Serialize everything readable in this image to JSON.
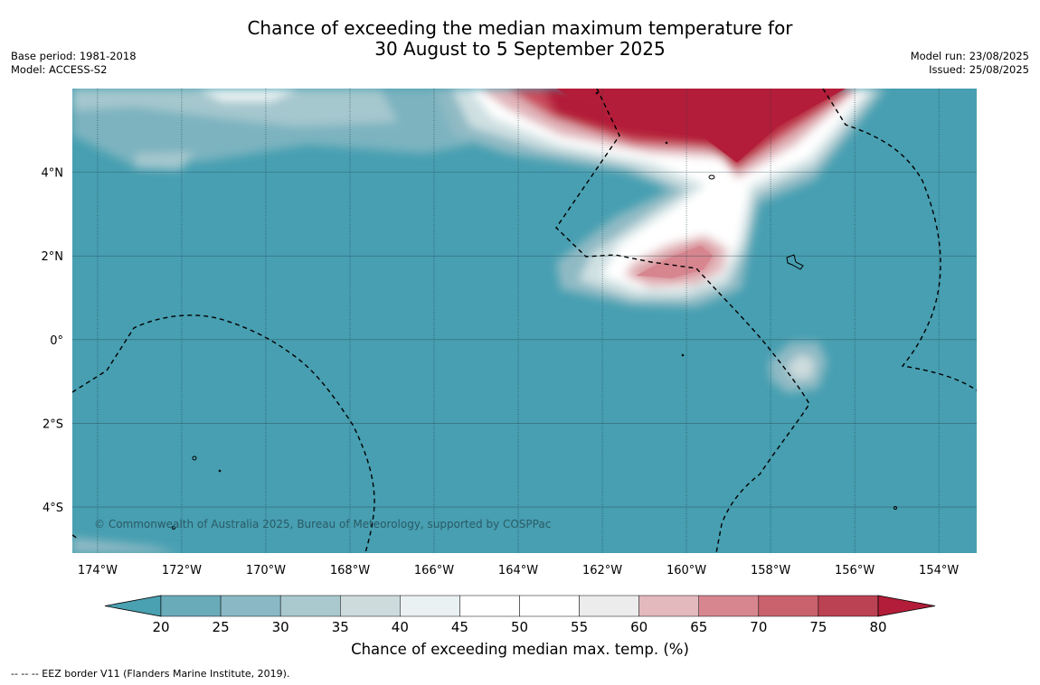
{
  "title_line1": "Chance of exceeding the median maximum temperature for",
  "title_line2": "30 August to 5 September 2025",
  "base_period": "Base period: 1981-2018",
  "model": "Model: ACCESS-S2",
  "model_run": "Model run: 23/08/2025",
  "issued": "Issued: 25/08/2025",
  "copyright": "© Commonwealth of Australia 2025, Bureau of Meteorology, supported by COSPPac",
  "colorbar_label": "Chance of exceeding median max. temp. (%)",
  "footnote": "-- -- -- EEZ border V11 (Flanders Marine Institute, 2019).",
  "map_extent": {
    "lon_min": -174.6,
    "lon_max": -153.1,
    "lat_min": -5.1,
    "lat_max": 6.0
  },
  "lon_ticks": [
    {
      "value": -174,
      "label": "174°W"
    },
    {
      "value": -172,
      "label": "172°W"
    },
    {
      "value": -170,
      "label": "170°W"
    },
    {
      "value": -168,
      "label": "168°W"
    },
    {
      "value": -166,
      "label": "166°W"
    },
    {
      "value": -164,
      "label": "164°W"
    },
    {
      "value": -162,
      "label": "162°W"
    },
    {
      "value": -160,
      "label": "160°W"
    },
    {
      "value": -158,
      "label": "158°W"
    },
    {
      "value": -156,
      "label": "156°W"
    },
    {
      "value": -154,
      "label": "154°W"
    }
  ],
  "lat_ticks": [
    {
      "value": 4,
      "label": "4°N"
    },
    {
      "value": 2,
      "label": "2°N"
    },
    {
      "value": 0,
      "label": "0°"
    },
    {
      "value": -2,
      "label": "2°S"
    },
    {
      "value": -4,
      "label": "4°S"
    }
  ],
  "colorbar": {
    "ticks": [
      "20",
      "25",
      "30",
      "35",
      "40",
      "45",
      "50",
      "55",
      "60",
      "65",
      "70",
      "75",
      "80"
    ],
    "colors": [
      "#4aa1b1",
      "#6aabba",
      "#8ab9c5",
      "#a9c9cf",
      "#cddbdd",
      "#eaf1f2",
      "#ffffff",
      "#ffffff",
      "#ececec",
      "#e3b9bd",
      "#d7868f",
      "#c9626c",
      "#bb4253",
      "#b31d39"
    ]
  },
  "colors": {
    "ocean_base": "#479fb1",
    "hot": "#b31d39",
    "gridline": "#1f3f4a"
  },
  "legend_line_style": "dashed black"
}
